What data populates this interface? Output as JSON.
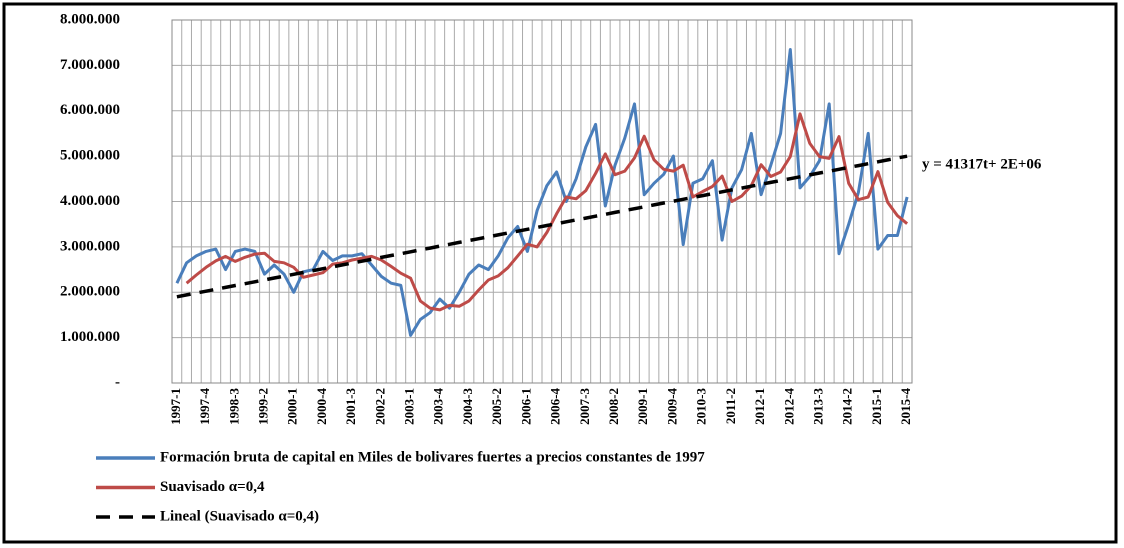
{
  "chart_data": {
    "type": "line",
    "categories": [
      "1997-1",
      null,
      null,
      "1997-4",
      null,
      null,
      "1998-3",
      null,
      null,
      "1999-2",
      null,
      null,
      "2000-1",
      null,
      null,
      "2000-4",
      null,
      null,
      "2001-3",
      null,
      null,
      "2002-2",
      null,
      null,
      "2003-1",
      null,
      null,
      "2003-4",
      null,
      null,
      "2004-3",
      null,
      null,
      "2005-2",
      null,
      null,
      "2006-1",
      null,
      null,
      "2006-4",
      null,
      null,
      "2007-3",
      null,
      null,
      "2008-2",
      null,
      null,
      "2009-1",
      null,
      null,
      "2009-4",
      null,
      null,
      "2010-3",
      null,
      null,
      "2011-2",
      null,
      null,
      "2012-1",
      null,
      null,
      "2012-4",
      null,
      null,
      "2013-3",
      null,
      null,
      "2014-2",
      null,
      null,
      "2015-1",
      null,
      null,
      "2015-4"
    ],
    "series": [
      {
        "name": "Formación bruta de capital en Miles de bolivares fuertes a precios constantes de 1997",
        "color": "#4a7ebb",
        "values": [
          2200000,
          2650000,
          2800000,
          2900000,
          2950000,
          2500000,
          2900000,
          2950000,
          2900000,
          2400000,
          2600000,
          2400000,
          2000000,
          2450000,
          2500000,
          2900000,
          2700000,
          2800000,
          2800000,
          2850000,
          2600000,
          2350000,
          2200000,
          2150000,
          1050000,
          1400000,
          1550000,
          1850000,
          1650000,
          2000000,
          2400000,
          2600000,
          2500000,
          2800000,
          3200000,
          3450000,
          2900000,
          3800000,
          4350000,
          4650000,
          4000000,
          4500000,
          5200000,
          5700000,
          3900000,
          4800000,
          5400000,
          6150000,
          4150000,
          4400000,
          4600000,
          5000000,
          3050000,
          4400000,
          4500000,
          4900000,
          3150000,
          4300000,
          4700000,
          5500000,
          4150000,
          4800000,
          5500000,
          7350000,
          4300000,
          4550000,
          4900000,
          6150000,
          2850000,
          3500000,
          4200000,
          5500000,
          2950000,
          3250000,
          3250000,
          4100000
        ]
      },
      {
        "name": "Suavisado  α=0,4",
        "color": "#be4b48",
        "values": [
          null,
          2200000,
          2380000,
          2550000,
          2690000,
          2790000,
          2680000,
          2770000,
          2840000,
          2860000,
          2680000,
          2650000,
          2550000,
          2330000,
          2380000,
          2430000,
          2620000,
          2650000,
          2710000,
          2750000,
          2790000,
          2710000,
          2570000,
          2420000,
          2310000,
          1810000,
          1650000,
          1610000,
          1710000,
          1690000,
          1810000,
          2050000,
          2270000,
          2360000,
          2540000,
          2800000,
          3060000,
          3000000,
          3320000,
          3730000,
          4100000,
          4060000,
          4240000,
          4620000,
          5050000,
          4590000,
          4670000,
          4960000,
          5440000,
          4920000,
          4710000,
          4670000,
          4800000,
          4100000,
          4220000,
          4330000,
          4560000,
          4000000,
          4120000,
          4350000,
          4810000,
          4550000,
          4650000,
          4990000,
          5930000,
          5280000,
          4990000,
          4950000,
          5430000,
          4400000,
          4040000,
          4100000,
          4660000,
          3980000,
          3690000,
          3510000
        ]
      },
      {
        "name": "Lineal (Suavisado  α=0,4)",
        "color": "#000000",
        "dashed": true,
        "values": [
          1900000,
          1941000,
          1983000,
          2024000,
          2065000,
          2107000,
          2148000,
          2189000,
          2231000,
          2272000,
          2313000,
          2354000,
          2396000,
          2437000,
          2478000,
          2520000,
          2561000,
          2602000,
          2644000,
          2685000,
          2726000,
          2768000,
          2809000,
          2850000,
          2892000,
          2933000,
          2974000,
          3016000,
          3057000,
          3098000,
          3140000,
          3181000,
          3222000,
          3264000,
          3305000,
          3346000,
          3387000,
          3429000,
          3470000,
          3511000,
          3553000,
          3594000,
          3635000,
          3677000,
          3718000,
          3759000,
          3801000,
          3842000,
          3883000,
          3925000,
          3966000,
          4007000,
          4049000,
          4090000,
          4131000,
          4172000,
          4214000,
          4255000,
          4296000,
          4338000,
          4379000,
          4420000,
          4462000,
          4503000,
          4544000,
          4586000,
          4627000,
          4668000,
          4710000,
          4751000,
          4792000,
          4834000,
          4875000,
          4916000,
          4958000,
          4999000
        ]
      }
    ],
    "annotation": "y = 41317t+ 2E+06",
    "ylim": [
      0,
      8000000
    ],
    "yticks": [
      {
        "value": 0,
        "label": "-"
      },
      {
        "value": 1000000,
        "label": "1.000.000"
      },
      {
        "value": 2000000,
        "label": "2.000.000"
      },
      {
        "value": 3000000,
        "label": "3.000.000"
      },
      {
        "value": 4000000,
        "label": "4.000.000"
      },
      {
        "value": 5000000,
        "label": "5.000.000"
      },
      {
        "value": 6000000,
        "label": "6.000.000"
      },
      {
        "value": 7000000,
        "label": "7.000.000"
      },
      {
        "value": 8000000,
        "label": "8.000.000"
      }
    ],
    "grid": true,
    "legend": "bottom"
  }
}
